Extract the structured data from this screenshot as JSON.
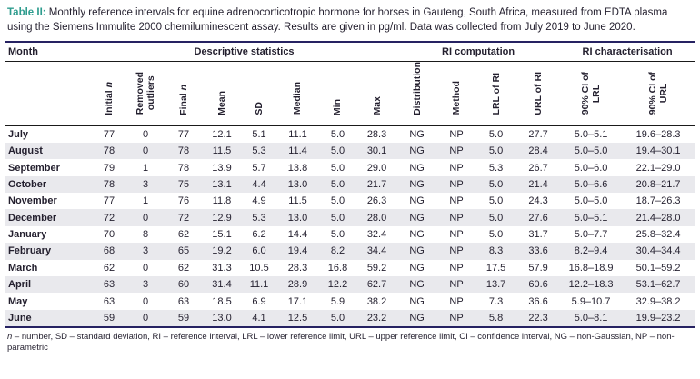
{
  "caption": {
    "label": "Table II:",
    "text": " Monthly reference intervals for equine adrenocorticotropic hormone for horses in Gauteng, South Africa, measured from EDTA plasma using the Siemens Immulite 2000 chemiluminescent assay. Results are given in pg/ml. Data was collected from July 2019 to June 2020."
  },
  "table": {
    "group_headers": {
      "month": "Month",
      "descriptive": "Descriptive statistics",
      "ri_computation": "RI computation",
      "ri_characterisation": "RI characterisation"
    },
    "columns": [
      {
        "pre": "Initial ",
        "it": "n"
      },
      {
        "pre": "Removed\noutliers",
        "it": ""
      },
      {
        "pre": "Final ",
        "it": "n"
      },
      {
        "pre": "Mean",
        "it": ""
      },
      {
        "pre": "SD",
        "it": ""
      },
      {
        "pre": "Median",
        "it": ""
      },
      {
        "pre": "Min",
        "it": ""
      },
      {
        "pre": "Max",
        "it": ""
      },
      {
        "pre": "Distribution",
        "it": ""
      },
      {
        "pre": "Method",
        "it": ""
      },
      {
        "pre": "LRL of RI",
        "it": ""
      },
      {
        "pre": "URL of RI",
        "it": ""
      },
      {
        "pre": "90% CI of\nLRL",
        "it": ""
      },
      {
        "pre": "90% CI of\nURL",
        "it": ""
      }
    ],
    "rows": [
      {
        "month": "July",
        "values": [
          "77",
          "0",
          "77",
          "12.1",
          "5.1",
          "11.1",
          "5.0",
          "28.3",
          "NG",
          "NP",
          "5.0",
          "27.7",
          "5.0–5.1",
          "19.6–28.3"
        ]
      },
      {
        "month": "August",
        "values": [
          "78",
          "0",
          "78",
          "11.5",
          "5.3",
          "11.4",
          "5.0",
          "30.1",
          "NG",
          "NP",
          "5.0",
          "28.4",
          "5.0–5.0",
          "19.4–30.1"
        ]
      },
      {
        "month": "September",
        "values": [
          "79",
          "1",
          "78",
          "13.9",
          "5.7",
          "13.8",
          "5.0",
          "29.0",
          "NG",
          "NP",
          "5.3",
          "26.7",
          "5.0–6.0",
          "22.1–29.0"
        ]
      },
      {
        "month": "October",
        "values": [
          "78",
          "3",
          "75",
          "13.1",
          "4.4",
          "13.0",
          "5.0",
          "21.7",
          "NG",
          "NP",
          "5.0",
          "21.4",
          "5.0–6.6",
          "20.8–21.7"
        ]
      },
      {
        "month": "November",
        "values": [
          "77",
          "1",
          "76",
          "11.8",
          "4.9",
          "11.5",
          "5.0",
          "26.3",
          "NG",
          "NP",
          "5.0",
          "24.3",
          "5.0–5.0",
          "18.7–26.3"
        ]
      },
      {
        "month": "December",
        "values": [
          "72",
          "0",
          "72",
          "12.9",
          "5.3",
          "13.0",
          "5.0",
          "28.0",
          "NG",
          "NP",
          "5.0",
          "27.6",
          "5.0–5.1",
          "21.4–28.0"
        ]
      },
      {
        "month": "January",
        "values": [
          "70",
          "8",
          "62",
          "15.1",
          "6.2",
          "14.4",
          "5.0",
          "32.4",
          "NG",
          "NP",
          "5.0",
          "31.7",
          "5.0–7.7",
          "25.8–32.4"
        ]
      },
      {
        "month": "February",
        "values": [
          "68",
          "3",
          "65",
          "19.2",
          "6.0",
          "19.4",
          "8.2",
          "34.4",
          "NG",
          "NP",
          "8.3",
          "33.6",
          "8.2–9.4",
          "30.4–34.4"
        ]
      },
      {
        "month": "March",
        "values": [
          "62",
          "0",
          "62",
          "31.3",
          "10.5",
          "28.3",
          "16.8",
          "59.2",
          "NG",
          "NP",
          "17.5",
          "57.9",
          "16.8–18.9",
          "50.1–59.2"
        ]
      },
      {
        "month": "April",
        "values": [
          "63",
          "3",
          "60",
          "31.4",
          "11.1",
          "28.9",
          "12.2",
          "62.7",
          "NG",
          "NP",
          "13.7",
          "60.6",
          "12.2–18.3",
          "53.1–62.7"
        ]
      },
      {
        "month": "May",
        "values": [
          "63",
          "0",
          "63",
          "18.5",
          "6.9",
          "17.1",
          "5.9",
          "38.2",
          "NG",
          "NP",
          "7.3",
          "36.6",
          "5.9–10.7",
          "32.9–38.2"
        ]
      },
      {
        "month": "June",
        "values": [
          "59",
          "0",
          "59",
          "13.0",
          "4.1",
          "12.5",
          "5.0",
          "23.2",
          "NG",
          "NP",
          "5.8",
          "22.3",
          "5.0–8.1",
          "19.9–23.2"
        ]
      }
    ]
  },
  "footnote": {
    "lead_italic": "n",
    "text": " – number, SD – standard deviation, RI – reference interval, LRL – lower reference limit, URL – upper reference limit, CI – confidence interval, NG – non-Gaussian, NP – non-parametric"
  },
  "colors": {
    "navy": "#262262",
    "teal": "#2e9c8e",
    "ink": "#231f2e",
    "altrow": "#e9e9ed"
  }
}
